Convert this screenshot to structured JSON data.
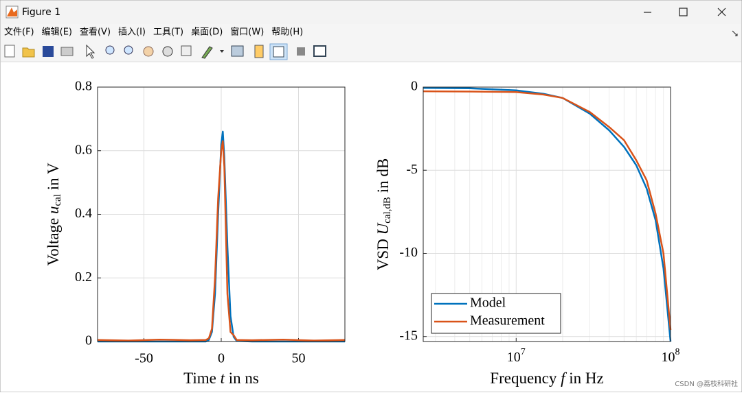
{
  "window": {
    "title": "Figure 1",
    "menu": [
      "文件(F)",
      "编辑(E)",
      "查看(V)",
      "插入(I)",
      "工具(T)",
      "桌面(D)",
      "窗口(W)",
      "帮助(H)"
    ],
    "watermark": "CSDN @荔枝科研社"
  },
  "chart_data": [
    {
      "type": "line",
      "xlabel": [
        "Time ",
        {
          "text": "t",
          "style": "italic"
        },
        " in ns"
      ],
      "ylabel": [
        "Voltage ",
        {
          "text": "u",
          "style": "italic"
        },
        {
          "text": "cal",
          "style": "sub"
        },
        " in V"
      ],
      "x": [
        -80,
        -60,
        -40,
        -20,
        -10,
        -8,
        -6,
        -4,
        -2,
        0,
        1,
        2,
        4,
        6,
        8,
        10,
        20,
        40,
        60,
        80
      ],
      "series": [
        {
          "color": "#0072bd",
          "values": [
            0,
            0,
            0,
            0,
            0,
            0.005,
            0.03,
            0.15,
            0.4,
            0.62,
            0.66,
            0.58,
            0.3,
            0.08,
            0.015,
            0.002,
            0,
            0,
            0,
            0
          ]
        },
        {
          "color": "#d95319",
          "values": [
            0.005,
            0.003,
            0.006,
            0.004,
            0.005,
            0.01,
            0.04,
            0.2,
            0.45,
            0.6,
            0.63,
            0.55,
            0.15,
            0.03,
            0.02,
            0.005,
            0.004,
            0.006,
            0.003,
            0.005
          ]
        }
      ],
      "xlim": [
        -80,
        80
      ],
      "xticks": [
        -50,
        0,
        50
      ],
      "ylim": [
        0,
        0.8
      ],
      "yticks": [
        0,
        0.2,
        0.4,
        0.6,
        0.8
      ],
      "grid": true
    },
    {
      "type": "line",
      "xlabel": [
        "Frequency ",
        {
          "text": "f",
          "style": "italic"
        },
        " in Hz"
      ],
      "ylabel": [
        "VSD ",
        {
          "text": "U",
          "style": "italic"
        },
        {
          "text": "cal,dB",
          "style": "sub"
        },
        " in dB"
      ],
      "x": [
        2500000,
        5000000,
        10000000,
        15000000,
        20000000,
        30000000,
        40000000,
        50000000,
        60000000,
        70000000,
        80000000,
        90000000,
        100000000
      ],
      "series": [
        {
          "name": "Model",
          "color": "#0072bd",
          "values": [
            -0.05,
            -0.07,
            -0.2,
            -0.4,
            -0.65,
            -1.6,
            -2.6,
            -3.6,
            -4.7,
            -6.1,
            -8,
            -10.9,
            -15.3
          ]
        },
        {
          "name": "Measurement",
          "color": "#d95319",
          "values": [
            -0.25,
            -0.27,
            -0.3,
            -0.45,
            -0.65,
            -1.5,
            -2.4,
            -3.2,
            -4.4,
            -5.6,
            -7.6,
            -10,
            -14.6
          ]
        }
      ],
      "xscale": "log",
      "xlim": [
        2500000,
        100000000
      ],
      "xticks": [
        {
          "value": 10000000,
          "label": "107"
        },
        {
          "value": 100000000,
          "label": "108"
        }
      ],
      "ylim": [
        -15.3,
        0
      ],
      "yticks": [
        0,
        -5,
        -10,
        -15
      ],
      "grid": true,
      "minor_grid": true,
      "legend": "lower left"
    }
  ]
}
